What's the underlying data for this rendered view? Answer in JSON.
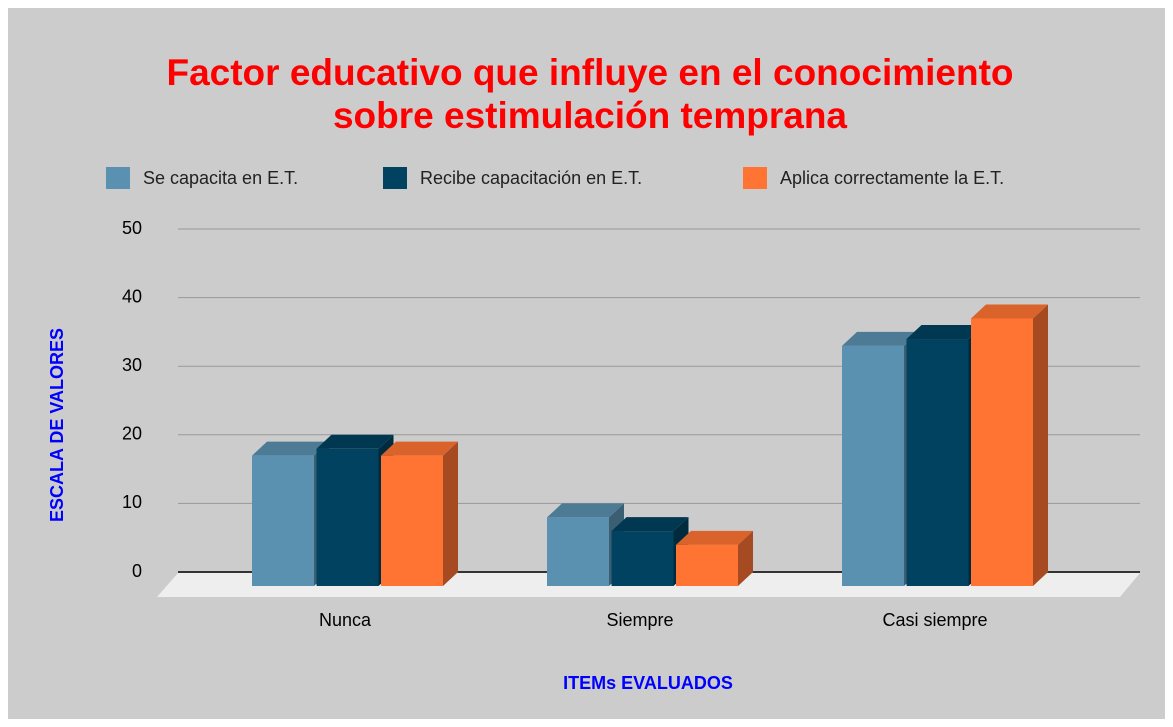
{
  "chart_data": {
    "type": "bar3d",
    "title": [
      "Factor educativo que influye en el conocimiento",
      "sobre estimulación temprana"
    ],
    "x_label": "ITEMs EVALUADOS",
    "y_label": "ESCALA DE VALORES",
    "categories": [
      "Nunca",
      "Siempre",
      "Casi siempre"
    ],
    "series": [
      {
        "name": "Se capacita en E.T.",
        "color": "#5b91b0",
        "values": [
          19,
          10,
          35
        ]
      },
      {
        "name": "Recibe capacitación en E.T.",
        "color": "#00425f",
        "values": [
          20,
          8,
          36
        ]
      },
      {
        "name": "Aplica correctamente la E.T.",
        "color": "#ff7433",
        "values": [
          19,
          6,
          39
        ]
      }
    ],
    "ylim": [
      0,
      50
    ],
    "yticks": [
      0,
      10,
      20,
      30,
      40,
      50
    ],
    "grid": true,
    "legend": "top"
  }
}
